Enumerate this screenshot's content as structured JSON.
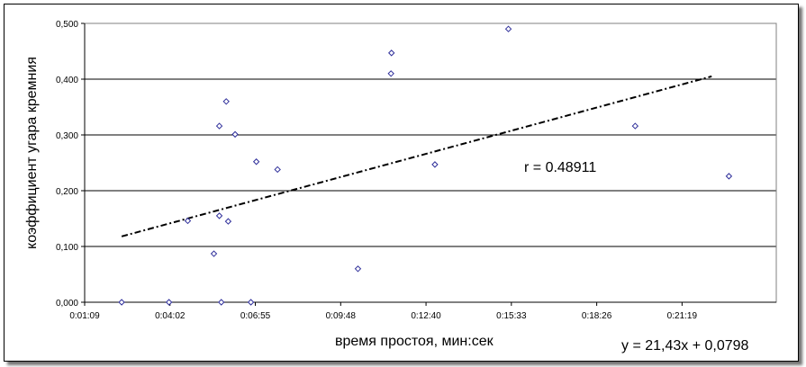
{
  "chart_data": {
    "type": "scatter",
    "xlabel": "время простоя, мин:сек",
    "ylabel": "коэффициент угара кремния",
    "x_tick_labels": [
      "0:01:09",
      "0:04:02",
      "0:06:55",
      "0:09:48",
      "0:12:40",
      "0:15:33",
      "0:18:26",
      "0:21:19"
    ],
    "xlim_seconds": [
      69,
      1471
    ],
    "x_tick_step_seconds": 173,
    "y_tick_labels": [
      "0,000",
      "0,100",
      "0,200",
      "0,300",
      "0,400",
      "0,500"
    ],
    "ylim": [
      0,
      0.5
    ],
    "grid": "horizontal",
    "points": [
      {
        "x": "0:02:24",
        "y": 0.0
      },
      {
        "x": "0:04:00",
        "y": 0.0
      },
      {
        "x": "0:04:38",
        "y": 0.146
      },
      {
        "x": "0:05:31",
        "y": 0.087
      },
      {
        "x": "0:05:42",
        "y": 0.155
      },
      {
        "x": "0:05:42",
        "y": 0.316
      },
      {
        "x": "0:05:46",
        "y": 0.0
      },
      {
        "x": "0:05:56",
        "y": 0.36
      },
      {
        "x": "0:06:00",
        "y": 0.145
      },
      {
        "x": "0:06:14",
        "y": 0.301
      },
      {
        "x": "0:06:46",
        "y": 0.0
      },
      {
        "x": "0:06:57",
        "y": 0.252
      },
      {
        "x": "0:07:40",
        "y": 0.238
      },
      {
        "x": "0:10:23",
        "y": 0.06
      },
      {
        "x": "0:11:30",
        "y": 0.41
      },
      {
        "x": "0:11:31",
        "y": 0.447
      },
      {
        "x": "0:12:59",
        "y": 0.247
      },
      {
        "x": "0:15:28",
        "y": 0.49
      },
      {
        "x": "0:19:45",
        "y": 0.316
      },
      {
        "x": "0:22:55",
        "y": 0.226
      }
    ],
    "trendline": {
      "style": "dash-dot",
      "x_start": "0:02:24",
      "y_start": 0.118,
      "x_end": "0:22:20",
      "y_end": 0.405
    },
    "annotations": {
      "r": "r = 0.48911",
      "equation": "y = 21,43x + 0,0798"
    },
    "colors": {
      "marker": "#2E2E9A",
      "grid": "#000000",
      "trendline": "#000000",
      "plot_border": "#808080"
    }
  }
}
